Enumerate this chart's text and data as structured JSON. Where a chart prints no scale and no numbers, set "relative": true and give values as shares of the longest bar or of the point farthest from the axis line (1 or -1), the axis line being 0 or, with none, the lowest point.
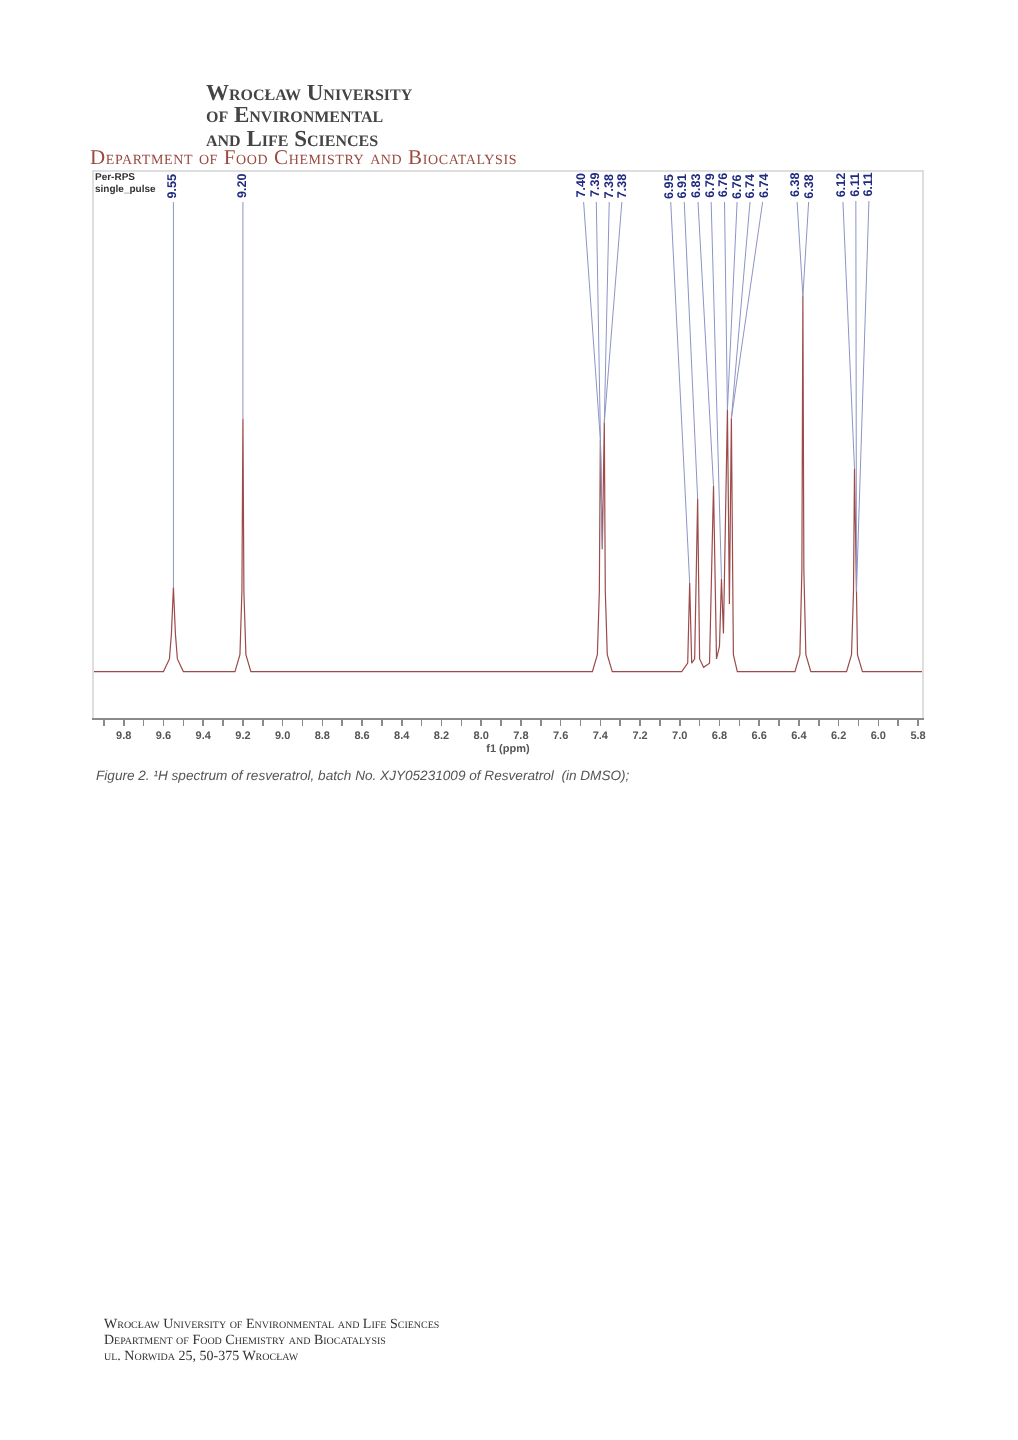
{
  "chart_data": {
    "type": "line",
    "title": "Wrocław University of Environmental and Life Sciences",
    "subtitle": "Department of Food Chemistry and Biocatalysis",
    "xlabel": "f1 (ppm)",
    "relative": true,
    "color": "#9c4a4a",
    "x": [
      9.96,
      9.6,
      9.57,
      9.56,
      9.55,
      9.54,
      9.53,
      9.5,
      9.24,
      9.215,
      9.205,
      9.2,
      9.195,
      9.185,
      9.16,
      7.44,
      7.415,
      7.405,
      7.4,
      7.39,
      7.38,
      7.375,
      7.365,
      7.34,
      6.99,
      6.96,
      6.95,
      6.94,
      6.925,
      6.91,
      6.9,
      6.88,
      6.85,
      6.83,
      6.815,
      6.8,
      6.79,
      6.78,
      6.76,
      6.75,
      6.74,
      6.73,
      6.71,
      6.42,
      6.395,
      6.385,
      6.38,
      6.375,
      6.365,
      6.34,
      6.16,
      6.135,
      6.125,
      6.12,
      6.11,
      6.105,
      6.08,
      5.77
    ],
    "values": [
      0.11,
      0.11,
      0.14,
      0.2,
      0.31,
      0.2,
      0.14,
      0.11,
      0.11,
      0.15,
      0.3,
      0.71,
      0.3,
      0.15,
      0.11,
      0.11,
      0.15,
      0.3,
      0.66,
      0.4,
      0.7,
      0.3,
      0.15,
      0.11,
      0.11,
      0.13,
      0.32,
      0.13,
      0.14,
      0.52,
      0.14,
      0.12,
      0.13,
      0.55,
      0.14,
      0.17,
      0.33,
      0.2,
      0.73,
      0.27,
      0.71,
      0.15,
      0.11,
      0.11,
      0.15,
      0.35,
      1,
      0.35,
      0.15,
      0.11,
      0.11,
      0.15,
      0.3,
      0.59,
      0.3,
      0.15,
      0.11,
      0.11
    ],
    "xlim": [
      9.96,
      5.77
    ],
    "xticks": [
      {
        "value": 9.9,
        "label": null
      },
      9.8,
      {
        "value": 9.7,
        "label": null
      },
      9.6,
      {
        "value": 9.5,
        "label": null
      },
      9.4,
      {
        "value": 9.3,
        "label": null
      },
      9.2,
      {
        "value": 9.1,
        "label": null
      },
      {
        "value": 9,
        "label": "9.0"
      },
      {
        "value": 8.9,
        "label": null
      },
      8.8,
      {
        "value": 8.7,
        "label": null
      },
      8.6,
      {
        "value": 8.5,
        "label": null
      },
      8.4,
      {
        "value": 8.3,
        "label": null
      },
      8.2,
      {
        "value": 8.1,
        "label": null
      },
      {
        "value": 8,
        "label": "8.0"
      },
      {
        "value": 7.9,
        "label": null
      },
      7.8,
      {
        "value": 7.7,
        "label": null
      },
      7.6,
      {
        "value": 7.5,
        "label": null
      },
      7.4,
      {
        "value": 7.3,
        "label": null
      },
      7.2,
      {
        "value": 7.1,
        "label": null
      },
      {
        "value": 7,
        "label": "7.0"
      },
      {
        "value": 6.9,
        "label": null
      },
      6.8,
      {
        "value": 6.7,
        "label": null
      },
      6.6,
      {
        "value": 6.5,
        "label": null
      },
      6.4,
      {
        "value": 6.3,
        "label": null
      },
      6.2,
      {
        "value": 6.1,
        "label": null
      },
      {
        "value": 6,
        "label": "6.0"
      },
      {
        "value": 5.9,
        "label": null
      },
      5.8
    ],
    "annotations": [
      "Per-RPS",
      "single_pulse",
      {
        "text": "9.55",
        "x": 9.55,
        "y": 0.31
      },
      {
        "text": "9.20",
        "x": 9.2,
        "y": 0.71
      },
      {
        "text": "7.40",
        "x": 7.4,
        "y": 0.66
      },
      {
        "text": "7.39",
        "x": 7.39,
        "y": 0.4
      },
      {
        "text": "7.38",
        "x": 7.38,
        "y": 0.7
      },
      {
        "text": "7.38",
        "x": 7.38,
        "y": 0.7
      },
      {
        "text": "6.95",
        "x": 6.95,
        "y": 0.32
      },
      {
        "text": "6.91",
        "x": 6.91,
        "y": 0.52
      },
      {
        "text": "6.83",
        "x": 6.83,
        "y": 0.55
      },
      {
        "text": "6.79",
        "x": 6.79,
        "y": 0.33
      },
      {
        "text": "6.76",
        "x": 6.76,
        "y": 0.73
      },
      {
        "text": "6.76",
        "x": 6.76,
        "y": 0.73
      },
      {
        "text": "6.74",
        "x": 6.74,
        "y": 0.71
      },
      {
        "text": "6.74",
        "x": 6.74,
        "y": 0.71
      },
      {
        "text": "6.38",
        "x": 6.38,
        "y": 1
      },
      {
        "text": "6.38",
        "x": 6.38,
        "y": 1
      },
      {
        "text": "6.12",
        "x": 6.12,
        "y": 0.59
      },
      {
        "text": "6.11",
        "x": 6.11,
        "y": 0.3
      },
      {
        "text": "6.11",
        "x": 6.11,
        "y": 0.3
      },
      "Figure 2. ¹H spectrum of resveratrol, batch No. XJY05231009 of Resveratrol  (in DMSO);",
      "Wrocław University of Environmental and Life Sciences",
      "Department of Food Chemistry and Biocatalysis",
      "ul. Norwida 25, 50-375 Wrocław"
    ]
  }
}
